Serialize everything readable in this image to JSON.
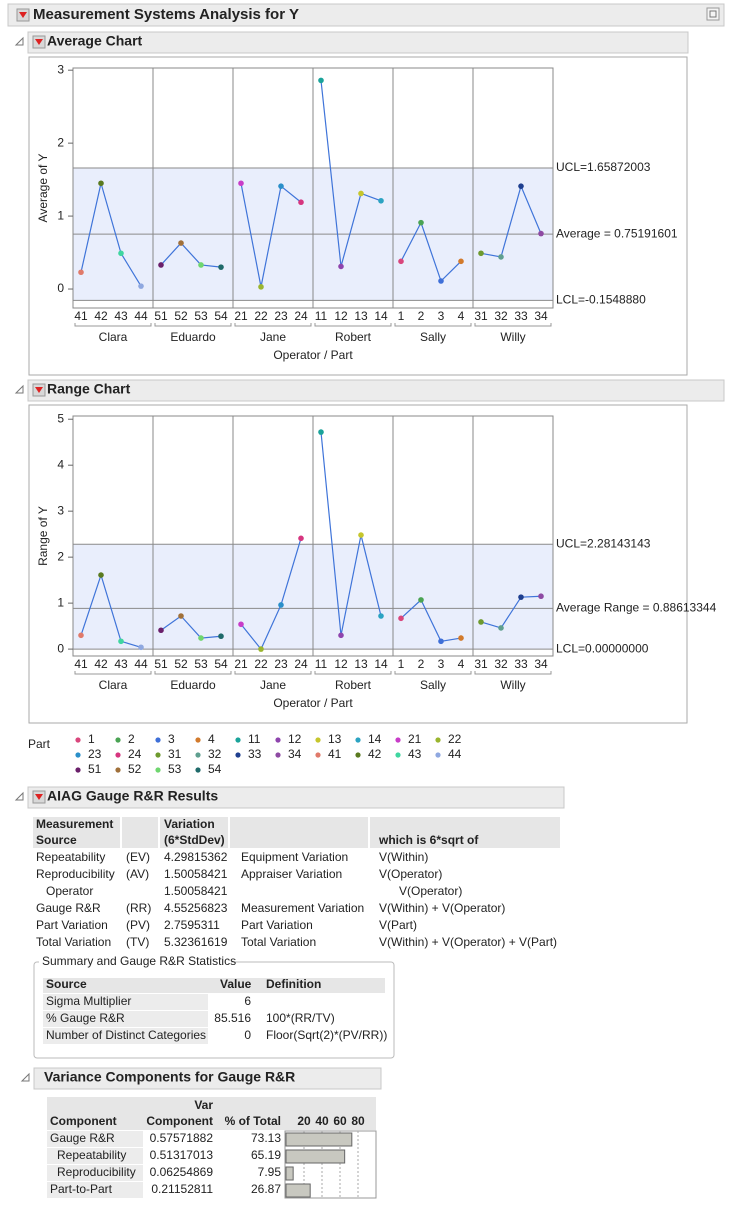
{
  "title": "Measurement Systems Analysis for Y",
  "chart_data": [
    {
      "type": "line",
      "title": "Average Chart",
      "y_label": "Average of Y",
      "x_label": "Operator / Part",
      "groups": [
        "Clara",
        "Eduardo",
        "Jane",
        "Robert",
        "Sally",
        "Willy"
      ],
      "categories": [
        "41",
        "42",
        "43",
        "44",
        "51",
        "52",
        "53",
        "54",
        "21",
        "22",
        "23",
        "24",
        "11",
        "12",
        "13",
        "14",
        "1",
        "2",
        "3",
        "4",
        "31",
        "32",
        "33",
        "34"
      ],
      "values": [
        0.23,
        1.45,
        0.49,
        0.04,
        0.33,
        0.63,
        0.33,
        0.3,
        1.45,
        0.03,
        1.41,
        1.19,
        2.86,
        0.31,
        1.31,
        1.21,
        0.38,
        0.91,
        0.11,
        0.38,
        0.49,
        0.44,
        1.41,
        0.76
      ],
      "color": "#3f74d9",
      "ylim": [
        -0.26,
        3.03
      ],
      "yticks": [
        0,
        1,
        2,
        3
      ],
      "limits": [
        {
          "value": 1.65872003,
          "label": "UCL=1.65872003"
        },
        {
          "value": 0.75191601,
          "label": "Average = 0.75191601"
        },
        {
          "value": -0.154888,
          "label": "LCL=-0.1548880"
        }
      ]
    },
    {
      "type": "line",
      "title": "Range Chart",
      "y_label": "Range of Y",
      "x_label": "Operator / Part",
      "groups": [
        "Clara",
        "Eduardo",
        "Jane",
        "Robert",
        "Sally",
        "Willy"
      ],
      "categories": [
        "41",
        "42",
        "43",
        "44",
        "51",
        "52",
        "53",
        "54",
        "21",
        "22",
        "23",
        "24",
        "11",
        "12",
        "13",
        "14",
        "1",
        "2",
        "3",
        "4",
        "31",
        "32",
        "33",
        "34"
      ],
      "values": [
        0.3,
        1.61,
        0.17,
        0.04,
        0.41,
        0.72,
        0.24,
        0.28,
        0.54,
        0,
        0.96,
        2.41,
        4.72,
        0.3,
        2.48,
        0.72,
        0.67,
        1.07,
        0.17,
        0.24,
        0.59,
        0.46,
        1.13,
        1.15
      ],
      "color": "#3f74d9",
      "ylim": [
        -0.15,
        5.07
      ],
      "yticks": [
        0,
        1,
        2,
        3,
        4,
        5
      ],
      "limits": [
        {
          "value": 2.28143143,
          "label": "UCL=2.28143143"
        },
        {
          "value": 0.88613344,
          "label": "Average Range = 0.88613344"
        },
        {
          "value": 0,
          "label": "LCL=0.00000000"
        }
      ]
    }
  ],
  "legend": {
    "title": "Part",
    "items": [
      {
        "label": "1",
        "color": "#d9467c"
      },
      {
        "label": "2",
        "color": "#4aa353"
      },
      {
        "label": "3",
        "color": "#3e6fd8"
      },
      {
        "label": "4",
        "color": "#d27a2c"
      },
      {
        "label": "11",
        "color": "#1aa39a"
      },
      {
        "label": "12",
        "color": "#8e44ad"
      },
      {
        "label": "13",
        "color": "#c6c62c"
      },
      {
        "label": "14",
        "color": "#2ba3c2"
      },
      {
        "label": "21",
        "color": "#c83cc8"
      },
      {
        "label": "22",
        "color": "#9ab52e"
      },
      {
        "label": "23",
        "color": "#2a8fc9"
      },
      {
        "label": "24",
        "color": "#d6357f"
      },
      {
        "label": "31",
        "color": "#6e9a2e"
      },
      {
        "label": "32",
        "color": "#5f9f8f"
      },
      {
        "label": "33",
        "color": "#1f3f8f"
      },
      {
        "label": "34",
        "color": "#8e4aa3"
      },
      {
        "label": "41",
        "color": "#e07a6a"
      },
      {
        "label": "42",
        "color": "#5a7a1f"
      },
      {
        "label": "43",
        "color": "#3fd6a0"
      },
      {
        "label": "44",
        "color": "#8fa8e0"
      },
      {
        "label": "51",
        "color": "#6a1f6a"
      },
      {
        "label": "52",
        "color": "#a0703a"
      },
      {
        "label": "53",
        "color": "#6fd66f"
      },
      {
        "label": "54",
        "color": "#1f6a6a"
      }
    ]
  },
  "aiag": {
    "title": "AIAG Gauge R&R Results",
    "header": [
      [
        "Measurement",
        "Source"
      ],
      null,
      [
        "Variation",
        "(6*StdDev)"
      ],
      null,
      [
        "which is 6*sqrt of"
      ]
    ],
    "rows": [
      [
        "Repeatability",
        "(EV)",
        4.29815362,
        "Equipment Variation",
        "V(Within)"
      ],
      [
        "Reproducibility",
        "(AV)",
        1.50058421,
        "Appraiser Variation",
        "V(Operator)"
      ],
      [
        "Operator",
        null,
        1.50058421,
        null,
        "V(Operator)"
      ],
      [
        "Gauge R&R",
        "(RR)",
        4.55256823,
        "Measurement Variation",
        "V(Within) + V(Operator)"
      ],
      [
        "Part Variation",
        "(PV)",
        2.7595311,
        "Part Variation",
        "V(Part)"
      ],
      [
        "Total Variation",
        "(TV)",
        5.32361619,
        "Total Variation",
        "V(Within) + V(Operator) + V(Part)"
      ]
    ]
  },
  "summary": {
    "title": "Summary and Gauge R&R Statistics",
    "header": [
      "Source",
      "Value",
      "Definition"
    ],
    "rows": [
      [
        "Sigma Multiplier",
        6,
        null
      ],
      [
        "% Gauge R&R",
        85.516,
        "100*(RR/TV)"
      ],
      [
        "Number of Distinct Categories",
        0,
        "Floor(Sqrt(2)*(PV/RR))"
      ]
    ]
  },
  "variance": {
    "title": "Variance Components for Gauge R&R",
    "header": [
      [
        "Component"
      ],
      [
        "Var",
        "Component"
      ],
      [
        "% of Total"
      ]
    ],
    "xlim": [
      0,
      100
    ],
    "xticks": [
      20,
      40,
      60,
      80
    ],
    "rows": [
      [
        "Gauge R&R",
        0.57571882,
        73.13
      ],
      [
        "Repeatability",
        0.51317013,
        65.19
      ],
      [
        "Reproducibility",
        0.06254869,
        7.95
      ],
      [
        "Part-to-Part",
        0.21152811,
        26.87
      ]
    ]
  }
}
